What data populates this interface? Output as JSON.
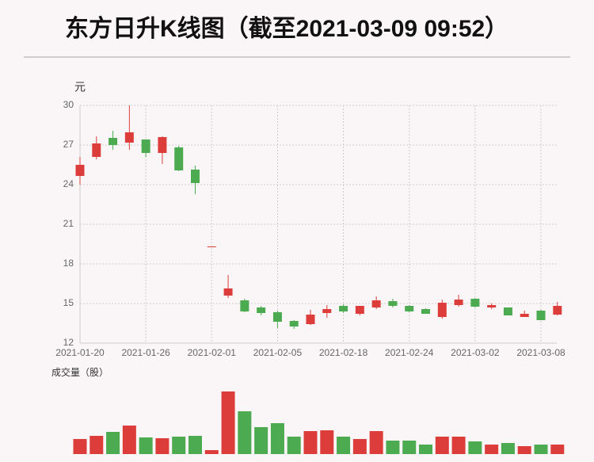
{
  "chart_data": {
    "type": "candlestick",
    "title": "东方日升K线图（截至2021-03-09 09:52）",
    "y_label": "元",
    "volume_label": "成交量（股）",
    "categories": [
      "2021-01-20",
      null,
      null,
      null,
      "2021-01-26",
      null,
      null,
      null,
      "2021-02-01",
      null,
      null,
      null,
      "2021-02-05",
      null,
      null,
      null,
      "2021-02-18",
      null,
      null,
      null,
      "2021-02-24",
      null,
      null,
      null,
      "2021-03-02",
      null,
      null,
      null,
      "2021-03-08",
      null
    ],
    "open": [
      24.66,
      26.1,
      27.54,
      27.18,
      27.42,
      26.4,
      26.82,
      25.14,
      19.32,
      15.6,
      15.24,
      14.7,
      14.34,
      13.68,
      13.44,
      14.28,
      14.82,
      14.22,
      14.7,
      15.18,
      14.82,
      14.58,
      13.98,
      14.88,
      15.36,
      14.7,
      14.7,
      13.98,
      14.46,
      14.16
    ],
    "high": [
      26.1,
      27.66,
      28.08,
      30.0,
      27.42,
      27.66,
      26.94,
      25.44,
      19.32,
      17.16,
      15.36,
      14.82,
      14.46,
      13.74,
      14.52,
      14.88,
      14.94,
      14.82,
      15.54,
      15.36,
      14.88,
      14.64,
      15.3,
      15.66,
      15.42,
      15.0,
      14.7,
      14.46,
      14.52,
      15.12
    ],
    "low": [
      24.0,
      25.92,
      26.64,
      26.64,
      26.1,
      25.56,
      25.02,
      23.28,
      19.32,
      15.42,
      14.34,
      14.1,
      13.14,
      13.08,
      13.38,
      13.92,
      14.28,
      14.1,
      14.58,
      14.7,
      14.34,
      14.22,
      13.86,
      14.76,
      14.7,
      14.58,
      14.1,
      13.98,
      13.74,
      14.1
    ],
    "close": [
      25.5,
      27.12,
      27.0,
      27.96,
      26.4,
      27.6,
      25.08,
      24.12,
      19.32,
      16.14,
      14.4,
      14.28,
      13.62,
      13.26,
      14.16,
      14.58,
      14.4,
      14.82,
      15.24,
      14.82,
      14.4,
      14.22,
      15.06,
      15.3,
      14.76,
      14.88,
      14.1,
      14.22,
      13.74,
      14.82
    ],
    "volume": [
      19,
      23,
      28,
      36,
      21,
      20,
      22,
      23,
      5,
      79,
      54,
      34,
      39,
      22,
      29,
      30,
      22,
      19,
      29,
      17,
      17,
      12,
      22,
      22,
      16,
      12,
      14,
      10,
      12,
      12
    ],
    "ylim": [
      12,
      30
    ],
    "yticks": [
      12,
      15,
      18,
      21,
      24,
      27,
      30
    ],
    "up_color": "#dd3d3a",
    "down_color": "#4caa50",
    "grid": true
  }
}
